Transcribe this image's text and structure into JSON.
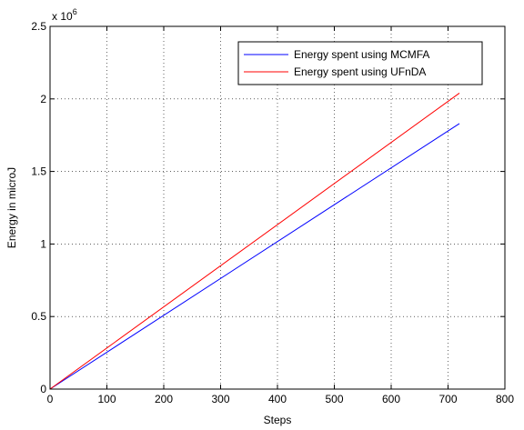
{
  "chart_data": {
    "type": "line",
    "title": "",
    "xlabel": "Steps",
    "ylabel": "Energy in microJ",
    "exponent_label": {
      "base": "x 10",
      "power": "6"
    },
    "xlim": [
      0,
      800
    ],
    "ylim": [
      0,
      2.5
    ],
    "xticks": [
      0,
      100,
      200,
      300,
      400,
      500,
      600,
      700,
      800
    ],
    "yticks": [
      0,
      0.5,
      1,
      1.5,
      2,
      2.5
    ],
    "xtick_labels": [
      "0",
      "100",
      "200",
      "300",
      "400",
      "500",
      "600",
      "700",
      "800"
    ],
    "ytick_labels": [
      "0",
      "0.5",
      "1",
      "1.5",
      "2",
      "2.5"
    ],
    "grid": true,
    "legend_position": "top-right",
    "series": [
      {
        "name": "Energy spent using MCMFA",
        "color": "#0000ff",
        "x": [
          0,
          720
        ],
        "y": [
          0,
          1.83
        ]
      },
      {
        "name": "Energy spent using UFnDA",
        "color": "#ff0000",
        "x": [
          0,
          720
        ],
        "y": [
          0,
          2.04
        ]
      }
    ]
  }
}
